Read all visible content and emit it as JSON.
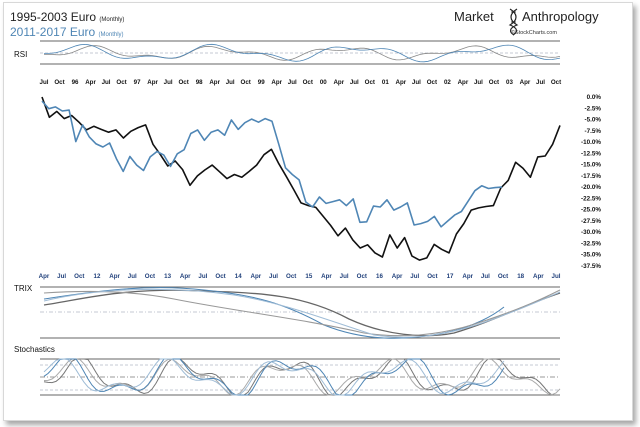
{
  "header": {
    "title_1": "1995-2003 Euro",
    "title_1_sub": "(Monthly)",
    "title_2": "2011-2017",
    "title_2_word": "Euro",
    "title_2_sub": "(Monthly)",
    "brand_1": "Market",
    "brand_2": "Anthropology",
    "source": "©StockCharts.com"
  },
  "colors": {
    "black_series": "#111111",
    "blue_series": "#4f86b5",
    "grid": "#9a9a9a",
    "dash": "#7d8a9e"
  },
  "icon": "dna-helix-icon",
  "panels": {
    "rsi": "RSI",
    "trix": "TRIX",
    "stochastics": "Stochastics"
  },
  "chart_data": [
    {
      "type": "line",
      "id": "price",
      "title": "1995-2003 Euro (Monthly) vs 2011-2017 Euro (Monthly)",
      "ylabel": "",
      "ylim": [
        -37.5,
        0
      ],
      "y_axis_side": "right",
      "y_ticks": [
        "0.0%",
        "-2.5%",
        "-5.0%",
        "-7.5%",
        "-10.0%",
        "-12.5%",
        "-15.0%",
        "-17.5%",
        "-20.0%",
        "-22.5%",
        "-25.0%",
        "-27.5%",
        "-30.0%",
        "-32.5%",
        "-35.0%",
        "-37.5%"
      ],
      "x_ticks_top": [
        "Jul",
        "Oct",
        "96",
        "Apr",
        "Jul",
        "Oct",
        "97",
        "Apr",
        "Jul",
        "Oct",
        "98",
        "Apr",
        "Jul",
        "Oct",
        "99",
        "Apr",
        "Jul",
        "Oct",
        "00",
        "Apr",
        "Jul",
        "Oct",
        "01",
        "Apr",
        "Jul",
        "Oct",
        "02",
        "Apr",
        "Jul",
        "Oct",
        "03",
        "Apr",
        "Jul",
        "Oct"
      ],
      "x_ticks_bottom": [
        "Apr",
        "Jul",
        "Oct",
        "12",
        "Apr",
        "Jul",
        "Oct",
        "13",
        "Apr",
        "Jul",
        "Oct",
        "14",
        "Apr",
        "Jul",
        "Oct",
        "15",
        "Apr",
        "Jul",
        "Oct",
        "16",
        "Apr",
        "Jul",
        "Oct",
        "17",
        "Apr",
        "Jul",
        "Oct",
        "18",
        "Apr",
        "Jul"
      ],
      "series": [
        {
          "name": "1995-2003 Euro",
          "color": "black",
          "values": [
            0,
            -4.5,
            -3.2,
            -4.8,
            -4.1,
            -5.6,
            -7.3,
            -6.5,
            -7.2,
            -7.8,
            -7.3,
            -9.1,
            -7.6,
            -6.8,
            -6.2,
            -10.5,
            -12.8,
            -15.3,
            -14.2,
            -16.1,
            -19.6,
            -17.5,
            -16.2,
            -15.1,
            -16.6,
            -18.1,
            -17.2,
            -17.8,
            -16.5,
            -15.1,
            -12.8,
            -11.6,
            -14.8,
            -17.6,
            -20.5,
            -23.5,
            -24.1,
            -24.5,
            -26.5,
            -28.5,
            -30.8,
            -29.1,
            -31.7,
            -33.5,
            -32.8,
            -34.6,
            -35.5,
            -30.6,
            -33.5,
            -31.2,
            -35.3,
            -36.2,
            -35.7,
            -32.7,
            -33.8,
            -34.6,
            -30.4,
            -28.1,
            -25.1,
            -24.6,
            -24.3,
            -24.1,
            -20.2,
            -18.5,
            -14.5,
            -15.8,
            -17.8,
            -13.3,
            -13.1,
            -10.5,
            -6.3
          ]
        },
        {
          "name": "2011-2017 Euro",
          "color": "blue",
          "values": [
            -0.9,
            -2.6,
            -2.2,
            -3.1,
            -2.9,
            -9.9,
            -6.2,
            -8.9,
            -10.4,
            -11.1,
            -10.2,
            -13.7,
            -16.5,
            -13.2,
            -15.1,
            -16.3,
            -13.3,
            -12.1,
            -12.9,
            -15.4,
            -12.6,
            -11.7,
            -8.1,
            -7.3,
            -9.6,
            -7.8,
            -7.3,
            -8.5,
            -5.1,
            -7.2,
            -5.7,
            -4.9,
            -5.6,
            -4.8,
            -5.4,
            -10.5,
            -15.7,
            -17.2,
            -18.4,
            -23.3,
            -24.4,
            -22.2,
            -23.6,
            -23.2,
            -22.8,
            -24.1,
            -22.6,
            -27.8,
            -27.7,
            -24.2,
            -24.4,
            -22.8,
            -25.1,
            -24.4,
            -23.5,
            -28.4,
            -28.1,
            -27.6,
            -26.5,
            -28.8,
            -27.5,
            -26.2,
            -25.4,
            -23.1,
            -20.8,
            -19.7,
            -20.3,
            -20.1,
            -20.0
          ]
        }
      ]
    }
  ]
}
